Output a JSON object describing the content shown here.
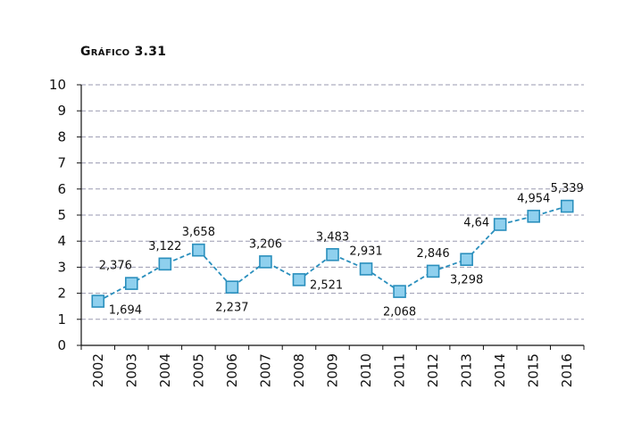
{
  "chart_data": {
    "type": "line",
    "title": "Gráfico 3.31",
    "categories": [
      "2002",
      "2003",
      "2004",
      "2005",
      "2006",
      "2007",
      "2008",
      "2009",
      "2010",
      "2011",
      "2012",
      "2013",
      "2014",
      "2015",
      "2016"
    ],
    "values": [
      1.694,
      2.376,
      3.122,
      3.658,
      2.237,
      3.206,
      2.521,
      3.483,
      2.931,
      2.068,
      2.846,
      3.298,
      4.64,
      4.954,
      5.339
    ],
    "labels": [
      "1,694",
      "2,376",
      "3,122",
      "3,658",
      "2,237",
      "3,206",
      "2,521",
      "3,483",
      "2,931",
      "2,068",
      "2,846",
      "3,298",
      "4,64",
      "4,954",
      "5,339"
    ],
    "label_pos": [
      "right-below",
      "above",
      "above",
      "above",
      "below",
      "above",
      "right",
      "above",
      "above",
      "below",
      "above",
      "below",
      "left",
      "above",
      "above"
    ],
    "yticks": [
      "0",
      "1",
      "2",
      "3",
      "4",
      "5",
      "6",
      "7",
      "8",
      "9",
      "10"
    ],
    "ylim": [
      0,
      10
    ],
    "grid": true,
    "colors": {
      "line": "#2a8fbd",
      "marker_fill": "#8fd0ee",
      "marker_edge": "#2a8fbd",
      "grid": "#9a9ab0"
    }
  }
}
